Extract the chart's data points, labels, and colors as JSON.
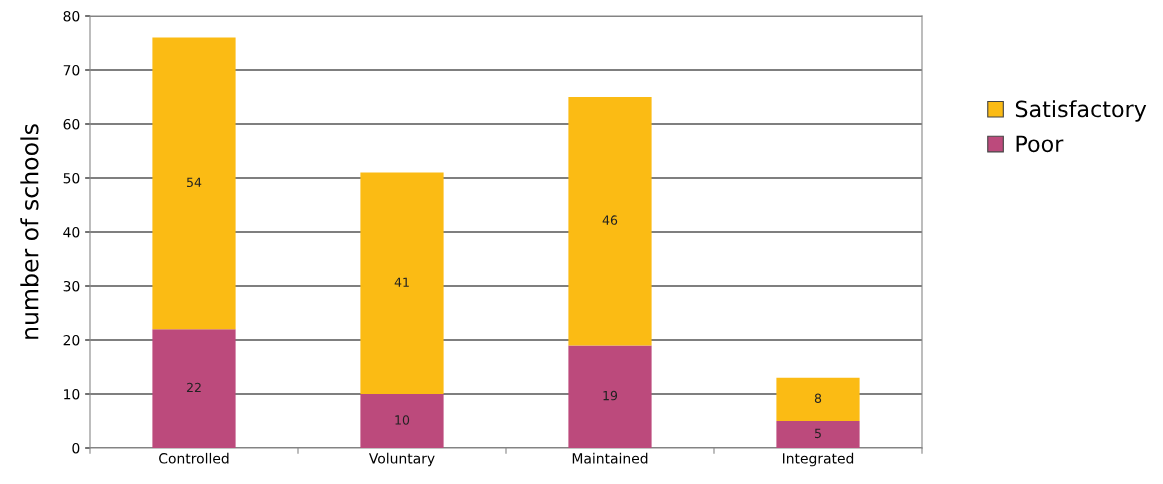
{
  "chart_data": {
    "type": "bar",
    "stacked": true,
    "ylabel": "number of schools",
    "categories": [
      "Controlled",
      "Voluntary",
      "Maintained",
      "Integrated"
    ],
    "series": [
      {
        "name": "Poor",
        "color": "#bc4a7c",
        "values": [
          22,
          10,
          19,
          5
        ]
      },
      {
        "name": "Satisfactory",
        "color": "#fbbb14",
        "values": [
          54,
          41,
          46,
          8
        ]
      }
    ],
    "ylim": [
      0,
      80
    ],
    "yticks": [
      0,
      10,
      20,
      30,
      40,
      50,
      60,
      70,
      80
    ],
    "grid": "y",
    "legend": "right",
    "data_labels": true
  }
}
